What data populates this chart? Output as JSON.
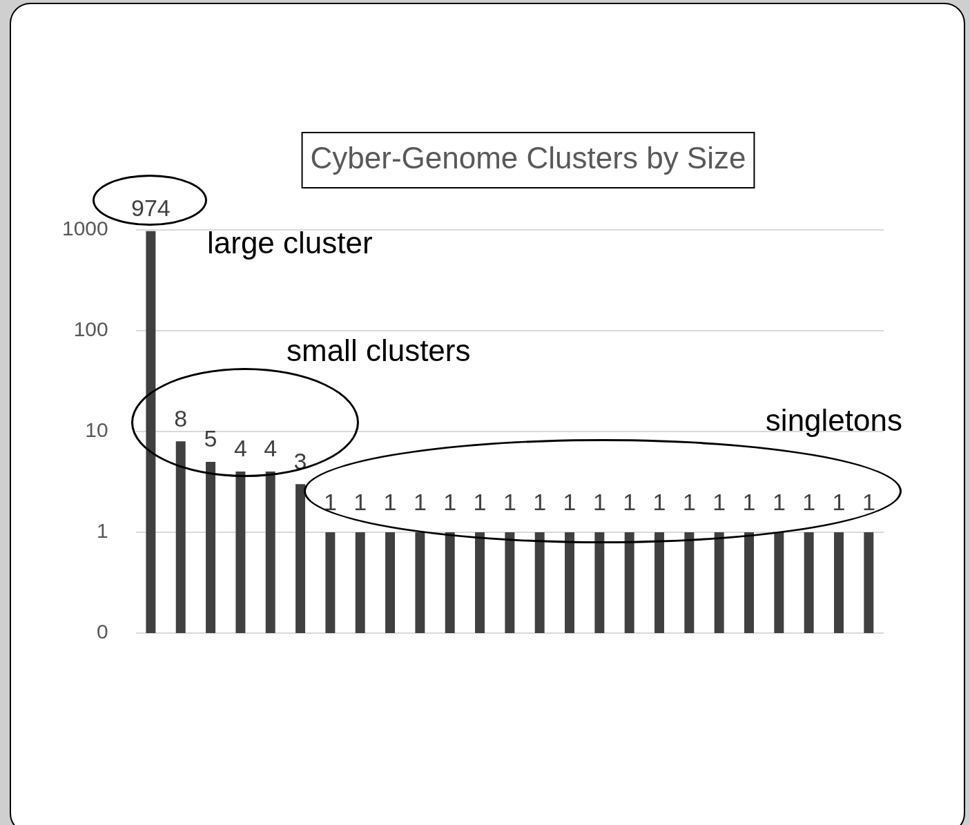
{
  "chart_data": {
    "type": "bar",
    "title": "Cyber-Genome Clusters by Size",
    "categories": [
      null,
      null,
      null,
      null,
      null,
      null,
      null,
      null,
      null,
      null,
      null,
      null,
      null,
      null,
      null,
      null,
      null,
      null,
      null,
      null,
      null,
      null,
      null,
      null,
      null
    ],
    "values": [
      974,
      8,
      5,
      4,
      4,
      3,
      1,
      1,
      1,
      1,
      1,
      1,
      1,
      1,
      1,
      1,
      1,
      1,
      1,
      1,
      1,
      1,
      1,
      1,
      1
    ],
    "color": "#404040",
    "log": "y",
    "ylim": [
      0.1,
      1000
    ],
    "yticks": [
      {
        "value": 0.1,
        "label": "0"
      },
      1,
      10,
      100,
      1000
    ],
    "grid": "y",
    "data_labels": true,
    "tick_labels": "y",
    "annotations": [
      "large cluster",
      "small clusters",
      "singletons"
    ]
  }
}
